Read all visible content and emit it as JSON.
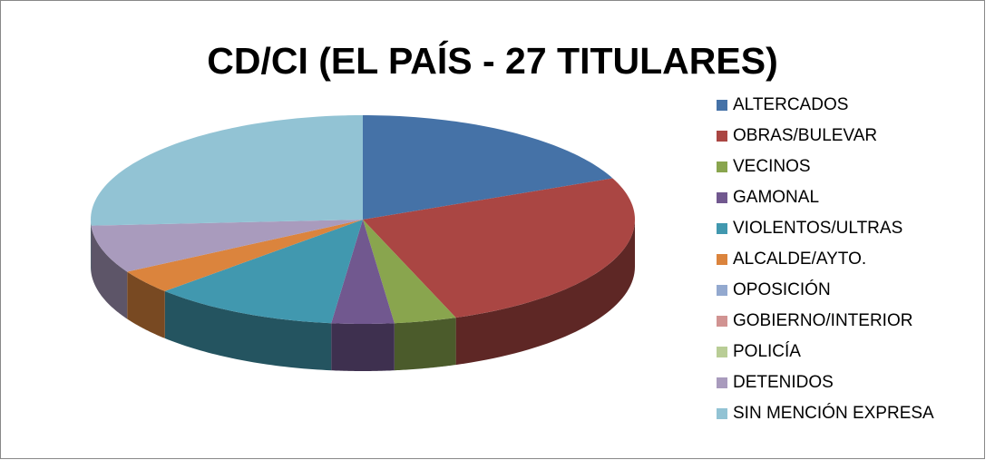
{
  "chart_data": {
    "type": "pie",
    "title": "CD/CI (EL PAÍS - 27 TITULARES)",
    "categories": [
      "ALTERCADOS",
      "OBRAS/BULEVAR",
      "VECINOS",
      "GAMONAL",
      "VIOLENTOS/ULTRAS",
      "ALCALDE/AYTO.",
      "OPOSICIÓN",
      "GOBIERNO/INTERIOR",
      "POLICÍA",
      "DETENIDOS",
      "SIN MENCIÓN EXPRESA"
    ],
    "values": [
      5,
      7,
      1,
      1,
      3,
      1,
      0,
      0,
      0,
      2,
      7
    ],
    "colors": [
      "#4572a7",
      "#aa4643",
      "#89a54e",
      "#71588f",
      "#4198af",
      "#db843d",
      "#93a9cf",
      "#d19392",
      "#b9cd96",
      "#a99bbd",
      "#92c3d4"
    ],
    "legend": "right"
  }
}
